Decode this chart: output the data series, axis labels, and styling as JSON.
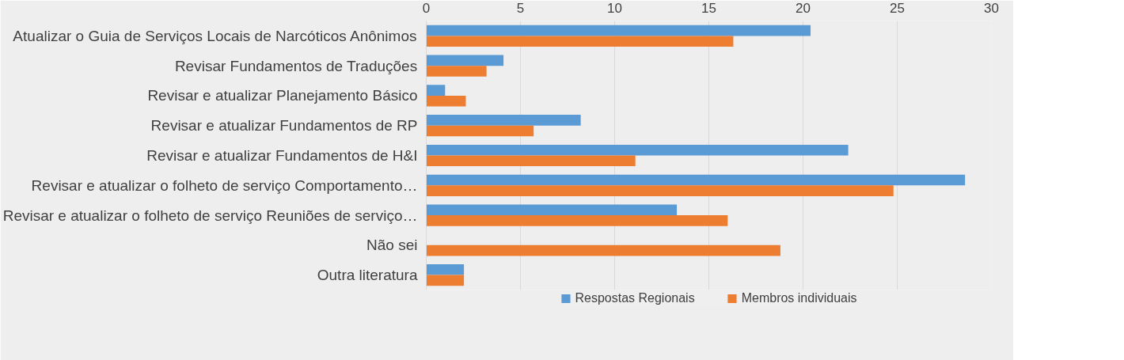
{
  "chart_data": {
    "type": "bar",
    "orientation": "horizontal",
    "categories": [
      "Atualizar o Guia de Serviços Locais de Narcóticos Anônimos",
      "Revisar Fundamentos de Traduções",
      "Revisar e atualizar Planejamento Básico",
      "Revisar e atualizar Fundamentos de RP",
      "Revisar e atualizar Fundamentos de H&I",
      "Revisar e atualizar o folheto de serviço Comportamento…",
      "Revisar e atualizar o folheto de serviço Reuniões de serviço…",
      "Não sei",
      "Outra literatura"
    ],
    "series": [
      {
        "name": "Respostas Regionais",
        "color": "#5b9bd5",
        "values": [
          20.4,
          4.1,
          1.0,
          8.2,
          22.4,
          28.6,
          13.3,
          null,
          2.0
        ]
      },
      {
        "name": "Membros individuais",
        "color": "#ed7d31",
        "values": [
          16.3,
          3.2,
          2.1,
          5.7,
          11.1,
          24.8,
          16.0,
          18.8,
          2.0
        ]
      }
    ],
    "xlim": [
      0,
      30
    ],
    "xticks": [
      0,
      5,
      10,
      15,
      20,
      25,
      30
    ],
    "grid": "x",
    "legend": "bottom"
  }
}
